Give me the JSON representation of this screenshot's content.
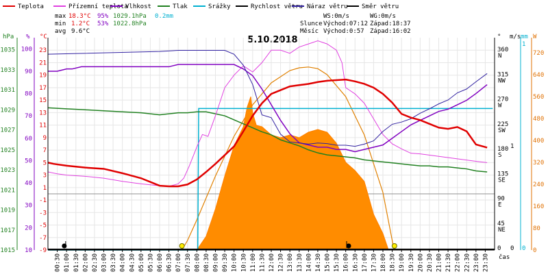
{
  "chart_data": {
    "type": "line",
    "title": "5.10.2018",
    "x_axis": {
      "label": "čas",
      "ticks": [
        "00:30",
        "01:00",
        "01:30",
        "02:00",
        "02:30",
        "03:00",
        "03:30",
        "04:00",
        "04:30",
        "05:00",
        "05:30",
        "06:00",
        "06:30",
        "07:00",
        "07:30",
        "08:00",
        "08:30",
        "09:00",
        "09:30",
        "10:00",
        "10:30",
        "11:00",
        "11:30",
        "12:00",
        "12:30",
        "13:00",
        "13:30",
        "14:00",
        "14:30",
        "15:00",
        "15:30",
        "16:00",
        "16:30",
        "17:00",
        "17:30",
        "18:00",
        "18:30",
        "19:00",
        "19:30",
        "20:00",
        "20:30",
        "21:00",
        "21:30",
        "22:00",
        "22:30",
        "23:00",
        "23:30"
      ]
    },
    "y_axes": {
      "pressure": {
        "unit": "hPa",
        "ticks": [
          "1015",
          "1017",
          "1019",
          "1021",
          "1023",
          "1025",
          "1027",
          "1029",
          "1031",
          "1033",
          "1035"
        ]
      },
      "humidity": {
        "unit": "%",
        "ticks": [
          "10",
          "20",
          "30",
          "40",
          "50",
          "60",
          "70",
          "80",
          "90",
          "100"
        ]
      },
      "temperature": {
        "unit": "°C",
        "ticks": [
          "-9",
          "-7",
          "-5",
          "-3",
          "-1",
          "1",
          "3",
          "5",
          "7",
          "9",
          "11",
          "13",
          "15",
          "17",
          "19",
          "21",
          "23"
        ]
      },
      "wind_direction": {
        "unit": "°",
        "ticks": [
          {
            "deg": "0",
            "dir": ""
          },
          {
            "deg": "45",
            "dir": "NE"
          },
          {
            "deg": "90",
            "dir": "E"
          },
          {
            "deg": "135",
            "dir": "SE"
          },
          {
            "deg": "180",
            "dir": "S"
          },
          {
            "deg": "225",
            "dir": "SW"
          },
          {
            "deg": "270",
            "dir": "W"
          },
          {
            "deg": "315",
            "dir": "NW"
          },
          {
            "deg": "360",
            "dir": "N"
          }
        ]
      },
      "wind_speed": {
        "unit": "m/s",
        "ticks": [
          "0",
          "1"
        ]
      },
      "rain": {
        "unit": "mm",
        "ticks": [
          "0",
          "1"
        ]
      },
      "solar": {
        "unit": "W",
        "ticks": [
          "0",
          "80",
          "160",
          "240",
          "320",
          "400",
          "480",
          "560",
          "640",
          "720"
        ]
      }
    },
    "legend": [
      {
        "name": "Teplota",
        "color": "#e00000"
      },
      {
        "name": "Přízemní teplota",
        "color": "#e040e0"
      },
      {
        "name": "Vlhkost",
        "color": "#8000c0"
      },
      {
        "name": "Tlak",
        "color": "#208020"
      },
      {
        "name": "Srážky",
        "color": "#00b0d0"
      },
      {
        "name": "Rychlost větru",
        "color": "#000000"
      },
      {
        "name": "Náraz větru",
        "color": "#3020a0"
      },
      {
        "name": "Směr větru",
        "color": "#000000"
      }
    ],
    "stats": {
      "max": {
        "label": "max",
        "temp": "18.3°C",
        "hum": "95%",
        "press": "1029.1hPa",
        "rain": "0.2mm"
      },
      "min": {
        "label": "min",
        "temp": "1.2°C",
        "hum": "53%",
        "press": "1022.8hPa"
      },
      "avg": {
        "label": "avg",
        "temp": "9.6°C"
      }
    },
    "wind_info": {
      "ws": "WS:0m/s",
      "wg": "WG:0m/s"
    },
    "sun": {
      "label": "Slunce",
      "rise": "Východ:07:12",
      "set": "Západ:18:37"
    },
    "moon": {
      "label": "Měsíc",
      "rise": "Východ:0:57",
      "set": "Západ:16:02"
    },
    "series": {
      "temperature": {
        "hours": [
          0,
          0.3,
          1,
          2,
          3,
          4,
          5,
          6,
          6.5,
          7,
          7.5,
          8,
          8.5,
          9,
          9.5,
          10,
          10.5,
          11,
          11.5,
          12,
          12.5,
          13,
          13.5,
          14,
          14.5,
          15,
          15.5,
          16,
          16.5,
          17,
          17.5,
          18,
          18.5,
          19,
          19.5,
          20,
          20.5,
          21,
          21.5,
          22,
          22.5,
          23,
          23.6
        ],
        "values": [
          5,
          4.8,
          4.5,
          4.2,
          4.0,
          3.3,
          2.5,
          1.3,
          1.2,
          1.2,
          1.5,
          2.3,
          3.5,
          4.8,
          6.2,
          7.6,
          10,
          12.5,
          14.5,
          16,
          16.6,
          17.2,
          17.4,
          17.6,
          17.9,
          18.1,
          18.2,
          18.3,
          18.0,
          17.6,
          17.0,
          16,
          14.6,
          12.8,
          12.2,
          11.8,
          11.2,
          10.6,
          10.4,
          10.7,
          10.0,
          7.9,
          7.4
        ]
      },
      "ground_temperature": {
        "hours": [
          0,
          0.5,
          1,
          2,
          3,
          4,
          5,
          6,
          6.5,
          7,
          7.3,
          7.6,
          8,
          8.3,
          8.6,
          9,
          9.5,
          10,
          10.5,
          11,
          11.5,
          12,
          12.5,
          13,
          13.5,
          14,
          14.5,
          15,
          15.5,
          15.8,
          16,
          16.5,
          17,
          17.5,
          18,
          18.5,
          19,
          19.5,
          20,
          21,
          22,
          23,
          23.6
        ],
        "values": [
          3.5,
          3.2,
          3.0,
          2.8,
          2.5,
          2.0,
          1.6,
          1.3,
          1.2,
          1.6,
          2.5,
          4.5,
          7.5,
          9.5,
          9.2,
          12.5,
          17,
          19,
          20.5,
          19.5,
          21,
          23,
          23,
          22.5,
          23.5,
          24,
          24.5,
          24,
          23,
          21,
          17,
          16,
          14.5,
          12,
          9.5,
          8,
          7.2,
          6.5,
          6.4,
          6,
          5.6,
          5.2,
          5
        ]
      },
      "humidity": {
        "hours": [
          0,
          0.5,
          1,
          1.3,
          1.8,
          2.5,
          3,
          4,
          5,
          6,
          6.5,
          7,
          7.5,
          8,
          8.5,
          9,
          9.5,
          10,
          10.5,
          11,
          11.5,
          12,
          12.5,
          13,
          13.5,
          14,
          14.5,
          15,
          15.5,
          16,
          16.5,
          17,
          17.5,
          18,
          18.5,
          19,
          19.5,
          20,
          20.5,
          21,
          21.5,
          22,
          22.5,
          23,
          23.6
        ],
        "values": [
          90,
          90,
          91,
          91,
          92,
          92,
          92,
          92,
          92,
          92,
          92,
          93,
          93,
          93,
          93,
          93,
          93,
          93,
          91,
          88,
          82,
          75,
          68,
          62,
          58,
          57,
          56,
          56,
          55,
          55,
          54,
          55,
          56,
          57,
          60,
          63,
          66,
          68,
          70,
          72,
          73,
          75,
          77,
          80,
          84
        ]
      },
      "pressure": {
        "hours": [
          0,
          1,
          2,
          3,
          4,
          5,
          6,
          6.5,
          7,
          7.5,
          8,
          8.5,
          9,
          9.5,
          10,
          10.5,
          11,
          11.5,
          12,
          12.5,
          13,
          13.5,
          14,
          14.5,
          15,
          15.5,
          16,
          16.5,
          17,
          17.5,
          18,
          18.5,
          19,
          19.5,
          20,
          20.5,
          21,
          21.5,
          22,
          22.5,
          23,
          23.6
        ],
        "values": [
          1029.2,
          1029.1,
          1029.0,
          1028.9,
          1028.8,
          1028.7,
          1028.5,
          1028.6,
          1028.7,
          1028.7,
          1028.8,
          1028.8,
          1028.6,
          1028.4,
          1028.0,
          1027.6,
          1027.2,
          1026.8,
          1026.5,
          1026.0,
          1025.7,
          1025.4,
          1025.0,
          1024.7,
          1024.5,
          1024.4,
          1024.3,
          1024.2,
          1024.0,
          1023.9,
          1023.8,
          1023.7,
          1023.6,
          1023.5,
          1023.4,
          1023.4,
          1023.3,
          1023.3,
          1023.2,
          1023.1,
          1022.9,
          1022.8
        ]
      },
      "gust_direction": {
        "hours": [
          0,
          6,
          7,
          8,
          8.5,
          9,
          9.5,
          10,
          10.5,
          11,
          11.5,
          12,
          12.5,
          13,
          13.5,
          14,
          14.5,
          15,
          15.5,
          16,
          16.5,
          17,
          17.5,
          18,
          18.5,
          19,
          19.5,
          20,
          20.5,
          21,
          21.5,
          22,
          22.5,
          23,
          23.6
        ],
        "values": [
          355,
          360,
          362,
          362,
          362,
          362,
          362,
          355,
          335,
          300,
          245,
          240,
          210,
          196,
          194,
          192,
          194,
          193,
          190,
          190,
          188,
          192,
          198,
          215,
          228,
          232,
          238,
          248,
          256,
          265,
          272,
          285,
          292,
          305,
          320
        ]
      },
      "rain": {
        "hours": [
          0,
          8.05,
          8.1,
          23.9
        ],
        "values": [
          0,
          0,
          0.2,
          0.2
        ],
        "axis_max": 0.3
      },
      "solar_theoretical": {
        "hours": [
          7.2,
          7.5,
          8,
          9,
          10,
          11,
          12,
          13,
          13.5,
          14,
          14.5,
          15,
          16,
          17,
          18,
          18.6
        ],
        "values": [
          0,
          35,
          110,
          270,
          415,
          530,
          610,
          655,
          665,
          668,
          662,
          640,
          560,
          420,
          210,
          0
        ]
      },
      "solar": {
        "hours": [
          8,
          8.5,
          9,
          9.5,
          10,
          10.5,
          10.7,
          10.9,
          11,
          11.2,
          11.5,
          12,
          12.5,
          13,
          13.5,
          14,
          14.5,
          15,
          15.5,
          16,
          16.5,
          17,
          17.5,
          18,
          18.3
        ],
        "values": [
          0,
          50,
          150,
          270,
          380,
          450,
          520,
          560,
          500,
          455,
          450,
          420,
          410,
          420,
          410,
          430,
          440,
          430,
          390,
          320,
          290,
          250,
          130,
          60,
          0
        ]
      }
    },
    "markers": [
      {
        "type": "moonrise",
        "hour": 0.95
      },
      {
        "type": "sunrise",
        "hour": 7.2
      },
      {
        "type": "moonset",
        "hour": 16.05
      },
      {
        "type": "sunset",
        "hour": 18.62
      }
    ]
  }
}
